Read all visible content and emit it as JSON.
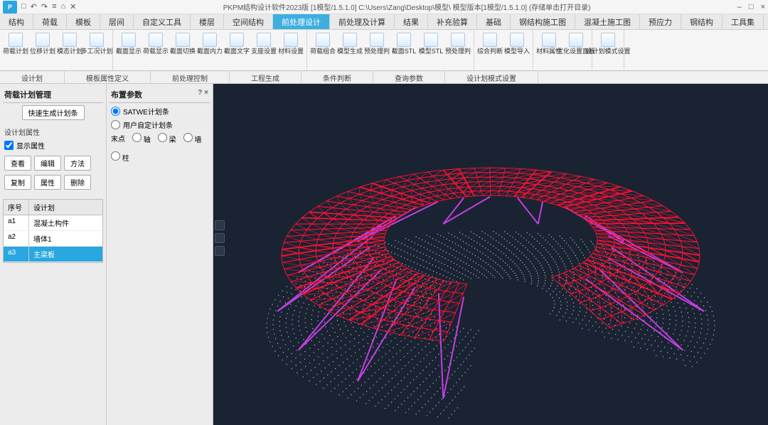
{
  "app": {
    "title": "PKPM结构设计软件2023版 [1模型/1.5.1.0] C:\\Users\\Zang\\Desktop\\模型\\ 模型版本[1模型/1.5.1.0]  (存储单击打开目录)",
    "logo_text": "P"
  },
  "qat": [
    "□",
    "↶",
    "↷",
    "≡",
    "⌂",
    "✕"
  ],
  "win": [
    "–",
    "□",
    "×"
  ],
  "menu_tabs": [
    {
      "label": "结构",
      "active": false
    },
    {
      "label": "荷载",
      "active": false
    },
    {
      "label": "模板",
      "active": false
    },
    {
      "label": "层间",
      "active": false
    },
    {
      "label": "自定义工具",
      "active": false
    },
    {
      "label": "楼层",
      "active": false
    },
    {
      "label": "空间结构",
      "active": false
    },
    {
      "label": "前处理设计",
      "active": true
    },
    {
      "label": "前处理及计算",
      "active": false
    },
    {
      "label": "结果",
      "active": false
    },
    {
      "label": "补充验算",
      "active": false
    },
    {
      "label": "基础",
      "active": false
    },
    {
      "label": "钢结构施工图",
      "active": false
    },
    {
      "label": "混凝土施工图",
      "active": false
    },
    {
      "label": "预应力",
      "active": false
    },
    {
      "label": "钢结构",
      "active": false
    },
    {
      "label": "工具集",
      "active": false
    }
  ],
  "ribbon_groups": [
    {
      "items": [
        {
          "lbl": "荷载计划"
        },
        {
          "lbl": "位移计划"
        },
        {
          "lbl": "模态计划"
        },
        {
          "lbl": "多工况计划"
        }
      ]
    },
    {
      "items": [
        {
          "lbl": "截面显示"
        },
        {
          "lbl": "荷载显示"
        },
        {
          "lbl": "截面切换"
        },
        {
          "lbl": "截面内力"
        },
        {
          "lbl": "截面文字"
        },
        {
          "lbl": "支座设置"
        },
        {
          "lbl": "材料设置"
        }
      ]
    },
    {
      "items": [
        {
          "lbl": "荷载组合"
        },
        {
          "lbl": "模型生成"
        },
        {
          "lbl": "预处理判"
        },
        {
          "lbl": "截面STL"
        },
        {
          "lbl": "模型STL"
        },
        {
          "lbl": "预处理判"
        }
      ]
    },
    {
      "items": [
        {
          "lbl": "综合判断"
        },
        {
          "lbl": "模型导入"
        }
      ]
    },
    {
      "items": [
        {
          "lbl": "材料属性"
        },
        {
          "lbl": "优化设置面板"
        }
      ]
    },
    {
      "items": [
        {
          "lbl": "设计划模式设置"
        }
      ]
    }
  ],
  "subbar": [
    "设计划",
    "模板属性定义",
    "前处理控制",
    "工程生成",
    "条件判断",
    "查询参数",
    "设计划模式设置"
  ],
  "left_panel": {
    "title": "荷载计划管理",
    "gen_btn": "快速生成计划条",
    "section1": "设计划属性",
    "chk_show": "显示属性",
    "btns1": [
      "查看",
      "编辑",
      "方法"
    ],
    "btns2": [
      "复制",
      "属性",
      "删除"
    ],
    "table_headers": [
      "序号",
      "设计划"
    ],
    "rows": [
      {
        "id": "a1",
        "name": "混凝土构件",
        "sel": false
      },
      {
        "id": "a2",
        "name": "墙体1",
        "sel": false
      },
      {
        "id": "a3",
        "name": "主梁板",
        "sel": true
      }
    ]
  },
  "right_panel": {
    "title": "布置参数",
    "close": "? ×",
    "radio1": "SATWE计划条",
    "radio2": "用户自定计划条",
    "pick_label": "末点",
    "pick_opts": [
      "轴",
      "梁",
      "墙",
      "柱"
    ]
  },
  "viewport": {
    "bg": "#1a2332",
    "mesh_main_color": "#ff1133",
    "strut_color": "#c040e0",
    "point_color": "#d0d8e0"
  }
}
